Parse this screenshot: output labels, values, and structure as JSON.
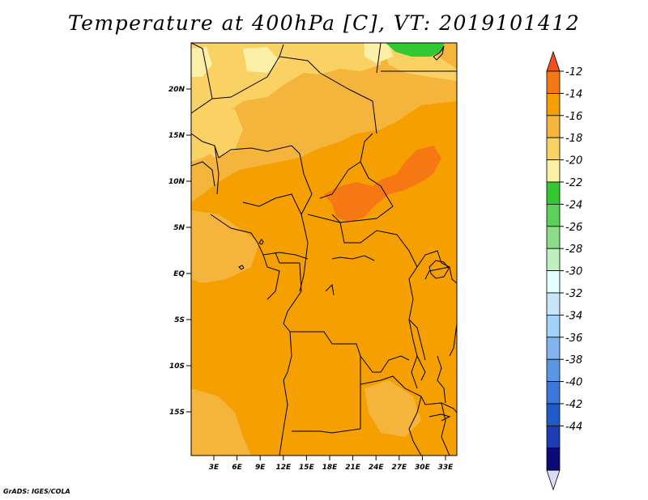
{
  "title": "Temperature at 400hPa [C], VT: 2019101412",
  "credit": "GrADS: IGES/COLA",
  "map": {
    "lat_labels": [
      "20N",
      "15N",
      "10N",
      "5N",
      "EQ",
      "5S",
      "10S",
      "15S"
    ],
    "lon_labels": [
      "3E",
      "6E",
      "9E",
      "12E",
      "15E",
      "18E",
      "21E",
      "24E",
      "27E",
      "30E",
      "33E"
    ],
    "dominant_fill": "#f5a000",
    "boundary_color": "#000000"
  },
  "colorbar": {
    "labels": [
      "-12",
      "-14",
      "-16",
      "-18",
      "-20",
      "-22",
      "-24",
      "-26",
      "-28",
      "-30",
      "-32",
      "-34",
      "-36",
      "-38",
      "-40",
      "-42",
      "-44"
    ],
    "colors": [
      "#f0501e",
      "#f57814",
      "#f5a000",
      "#f5b43c",
      "#fad264",
      "#fcefa6",
      "#32c832",
      "#5ad25a",
      "#8cdc8c",
      "#bef0be",
      "#e6ffff",
      "#c8e6fa",
      "#a0d2fa",
      "#82b4f0",
      "#5a96e6",
      "#3c78dc",
      "#1e5ac8",
      "#1e3cb4",
      "#0a0a78",
      "#dcdcfa"
    ]
  }
}
